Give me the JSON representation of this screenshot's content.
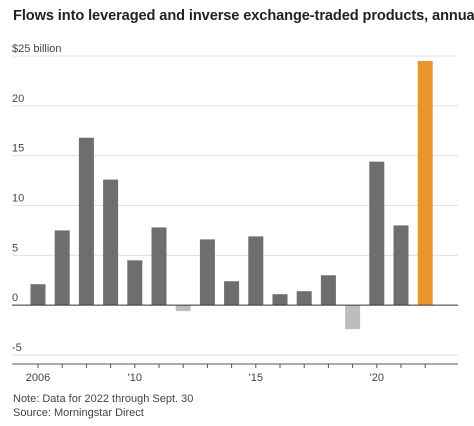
{
  "chart_data": {
    "type": "bar",
    "title": "Flows into leveraged and inverse exchange-traded products, annually",
    "unit_label": "$25 billion",
    "xlabel": "",
    "ylabel": "",
    "ylim": [
      -5,
      25
    ],
    "y_ticks": [
      -5,
      0,
      5,
      10,
      15,
      20,
      25
    ],
    "y_tick_labels": [
      "-5",
      "0",
      "5",
      "10",
      "15",
      "20",
      "$25 billion"
    ],
    "x_tick_labels": [
      {
        "year": "2006",
        "label": "2006"
      },
      {
        "year": "2010",
        "label": "'10"
      },
      {
        "year": "2015",
        "label": "'15"
      },
      {
        "year": "2020",
        "label": "'20"
      }
    ],
    "categories": [
      "2006",
      "2007",
      "2008",
      "2009",
      "2010",
      "2011",
      "2012",
      "2013",
      "2014",
      "2015",
      "2016",
      "2017",
      "2018",
      "2019",
      "2020",
      "2021",
      "2022"
    ],
    "values": [
      2.1,
      7.5,
      16.8,
      12.6,
      4.5,
      7.8,
      -0.6,
      6.6,
      2.4,
      6.9,
      1.1,
      1.4,
      3.0,
      -2.4,
      14.4,
      8.0,
      24.5
    ],
    "colors": {
      "positive": "#6e6e6e",
      "negative": "#bdbdbd",
      "highlight": "#e8952a",
      "grid": "#e0e0e0",
      "zero_line": "#333333"
    },
    "highlight_category": "2022",
    "grid": true,
    "legend": "none"
  },
  "notes": {
    "line1": "Note: Data for 2022 through Sept. 30",
    "line2": "Source: Morningstar Direct"
  }
}
